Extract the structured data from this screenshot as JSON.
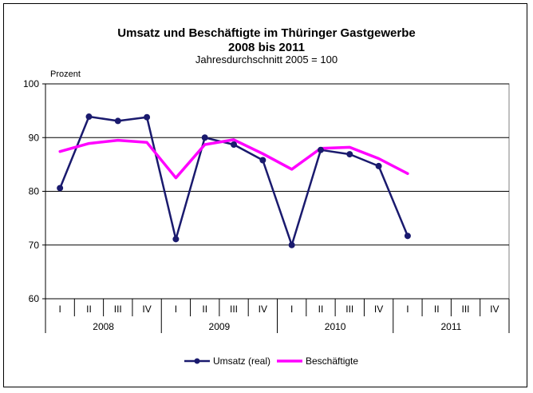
{
  "chart_data": {
    "type": "line",
    "title": "Umsatz und Beschäftigte im Thüringer Gastgewerbe",
    "subtitle": "2008 bis 2011",
    "subtitle2": "Jahresdurchschnitt 2005 = 100",
    "ylabel": "Prozent",
    "ylim": [
      60,
      100
    ],
    "yticks": [
      60,
      70,
      80,
      90,
      100
    ],
    "quarters": [
      "I",
      "II",
      "III",
      "IV",
      "I",
      "II",
      "III",
      "IV",
      "I",
      "II",
      "III",
      "IV",
      "I",
      "II",
      "III",
      "IV"
    ],
    "years": [
      "2008",
      "2009",
      "2010",
      "2011"
    ],
    "grid": true,
    "legend_position": "bottom",
    "series": [
      {
        "name": "Umsatz (real)",
        "color": "#1a1a6e",
        "marker": "circle",
        "values": [
          80.6,
          93.9,
          93.1,
          93.8,
          71.1,
          90.0,
          88.7,
          85.8,
          70.0,
          87.7,
          86.9,
          84.7,
          71.7,
          null,
          null,
          null
        ]
      },
      {
        "name": "Beschäftigte",
        "color": "#ff00ff",
        "marker": "none",
        "values": [
          87.4,
          88.9,
          89.5,
          89.1,
          82.5,
          88.7,
          89.6,
          87.0,
          84.1,
          88.0,
          88.2,
          86.1,
          83.3,
          null,
          null,
          null
        ]
      }
    ]
  }
}
